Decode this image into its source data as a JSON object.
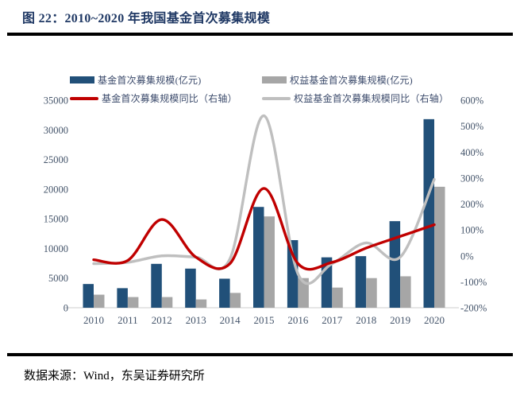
{
  "figure": {
    "title": "图 22：2010~2020 年我国基金首次募集规模"
  },
  "source": {
    "text": "数据来源：Wind，东吴证券研究所"
  },
  "chart_data": {
    "type": "bar+line combo, dual axis",
    "categories": [
      "2010",
      "2011",
      "2012",
      "2013",
      "2014",
      "2015",
      "2016",
      "2017",
      "2018",
      "2019",
      "2020"
    ],
    "left_axis": {
      "min": 0,
      "max": 35000,
      "step": 5000,
      "label_color": "#44546A"
    },
    "right_axis": {
      "min": -200,
      "max": 600,
      "step": 100,
      "suffix": "%",
      "label_color": "#44546A"
    },
    "grid": "off",
    "legend_position": "top, two columns",
    "axis_line_color": "#D6D6D6",
    "series": [
      {
        "name": "基金首次募集规模(亿元)",
        "type": "bar",
        "axis": "left",
        "color": "#215079",
        "values": [
          4000,
          3300,
          7400,
          6600,
          4900,
          17000,
          11400,
          8500,
          8700,
          14600,
          31800
        ]
      },
      {
        "name": "权益基金首次募集规模(亿元)",
        "type": "bar",
        "axis": "left",
        "color": "#A6A6A6",
        "values": [
          2200,
          1800,
          1800,
          1400,
          2500,
          15400,
          5000,
          3400,
          5000,
          5300,
          20400
        ]
      },
      {
        "name": "基金首次募集规模同比（右轴）",
        "type": "line",
        "axis": "right",
        "color": "#C00000",
        "values": [
          -15,
          -18,
          140,
          -5,
          -30,
          260,
          -30,
          -25,
          30,
          75,
          120
        ]
      },
      {
        "name": "权益基金首次募集规模同比（右轴）",
        "type": "line",
        "axis": "right",
        "color": "#BFBFBF",
        "values": [
          -30,
          -25,
          0,
          -5,
          -12,
          540,
          -70,
          -30,
          50,
          -5,
          295
        ]
      }
    ]
  }
}
